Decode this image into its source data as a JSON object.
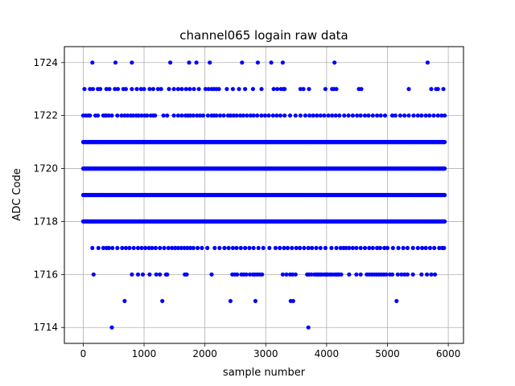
{
  "chart_data": {
    "type": "scatter",
    "title": "channel065 logain raw data",
    "xlabel": "sample number",
    "ylabel": "ADC Code",
    "xlim": [
      -310,
      6250
    ],
    "ylim": [
      1713.4,
      1724.6
    ],
    "xticks": [
      0,
      1000,
      2000,
      3000,
      4000,
      5000,
      6000
    ],
    "yticks": [
      1714,
      1716,
      1718,
      1720,
      1722,
      1724
    ],
    "grid": true,
    "marker_color": "#0000ff",
    "series": [
      {
        "x_range": [
          0,
          5950
        ],
        "rows": [
          {
            "y": 1724,
            "x": [
              150,
              530,
              800,
              1430,
              1740,
              1860,
              2080,
              2610,
              2870,
              3090,
              3280,
              4130,
              5660
            ]
          },
          {
            "y": 1723,
            "x": [
              20,
              110,
              160,
              240,
              280,
              380,
              430,
              520,
              570,
              660,
              700,
              800,
              880,
              950,
              1000,
              1090,
              1150,
              1230,
              1280,
              1410,
              1490,
              1560,
              1620,
              1690,
              1750,
              1820,
              1900,
              2010,
              2060,
              2110,
              2150,
              2190,
              2230,
              2360,
              2460,
              2560,
              2660,
              2790,
              2930,
              3130,
              3190,
              3250,
              3290,
              3310,
              3570,
              3620,
              3710,
              3980,
              4090,
              4120,
              4160,
              4530,
              4570,
              5350,
              5720,
              5800,
              5830,
              5920
            ]
          },
          {
            "y": 1722,
            "x": [
              0,
              40,
              80,
              110,
              200,
              240,
              330,
              360,
              380,
              420,
              470,
              560,
              630,
              680,
              730,
              780,
              820,
              870,
              910,
              960,
              1010,
              1050,
              1110,
              1150,
              1180,
              1320,
              1380,
              1490,
              1560,
              1620,
              1680,
              1720,
              1760,
              1810,
              1870,
              1920,
              1970,
              2050,
              2110,
              2150,
              2190,
              2250,
              2310,
              2380,
              2420,
              2470,
              2520,
              2580,
              2630,
              2690,
              2750,
              2800,
              2860,
              2930,
              2990,
              3050,
              3120,
              3180,
              3240,
              3310,
              3400,
              3490,
              3570,
              3650,
              3720,
              3780,
              3840,
              3900,
              3960,
              4030,
              4090,
              4150,
              4210,
              4290,
              4360,
              4430,
              4500,
              4560,
              4630,
              4690,
              4760,
              4830,
              4890,
              4960,
              5080,
              5130,
              5210,
              5280,
              5350,
              5430,
              5500,
              5560,
              5630,
              5690,
              5760,
              5830,
              5890,
              5940
            ]
          },
          {
            "y": 1721,
            "dense": true
          },
          {
            "y": 1720,
            "dense": true
          },
          {
            "y": 1719,
            "dense": true
          },
          {
            "y": 1718,
            "dense": true
          },
          {
            "y": 1717,
            "x": [
              150,
              250,
              330,
              380,
              420,
              480,
              560,
              640,
              700,
              760,
              830,
              900,
              960,
              1020,
              1080,
              1130,
              1190,
              1260,
              1330,
              1400,
              1460,
              1510,
              1560,
              1610,
              1660,
              1710,
              1760,
              1810,
              1880,
              1950,
              2040,
              2160,
              2240,
              2320,
              2390,
              2460,
              2520,
              2590,
              2660,
              2730,
              2800,
              2880,
              2960,
              3060,
              3160,
              3230,
              3300,
              3360,
              3430,
              3500,
              3560,
              3630,
              3700,
              3760,
              3830,
              3900,
              3980,
              4080,
              4160,
              4230,
              4280,
              4320,
              4370,
              4430,
              4490,
              4560,
              4630,
              4700,
              4760,
              4830,
              4880,
              4950,
              5000,
              5090,
              5180,
              5260,
              5330,
              5420,
              5500,
              5570,
              5630,
              5700,
              5770,
              5850,
              5900,
              5930
            ]
          },
          {
            "y": 1716,
            "x": [
              170,
              800,
              900,
              980,
              1090,
              1200,
              1260,
              1360,
              1380,
              1670,
              1700,
              2110,
              2600,
              2450,
              2490,
              2530,
              2640,
              2680,
              2740,
              2790,
              2820,
              2860,
              2900,
              2940,
              3280,
              3340,
              3400,
              3440,
              3490,
              3680,
              3710,
              3750,
              3800,
              3830,
              3850,
              3870,
              3900,
              3920,
              3960,
              3990,
              4000,
              4020,
              4060,
              4090,
              4130,
              4160,
              4180,
              4200,
              4240,
              4370,
              4490,
              4560,
              4660,
              4700,
              4740,
              4780,
              4820,
              4860,
              4900,
              4940,
              4980,
              5040,
              5080,
              5170,
              5230,
              5280,
              5330,
              5420,
              5560,
              5650,
              5720,
              5780
            ]
          },
          {
            "y": 1715,
            "x": [
              680,
              1300,
              2420,
              2830,
              3410,
              3450,
              5150
            ]
          },
          {
            "y": 1714,
            "x": [
              470,
              3700
            ]
          }
        ]
      }
    ]
  }
}
